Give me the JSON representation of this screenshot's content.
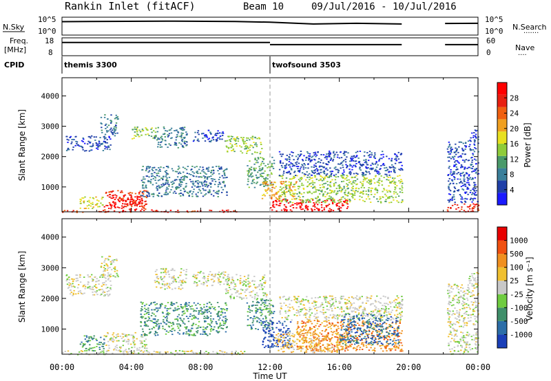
{
  "header": {
    "title": "Rankin Inlet (fitACF)",
    "beam": "Beam 10",
    "date_range": "09/Jul/2016 - 10/Jul/2016"
  },
  "colors": {
    "power_scale": [
      "#1a1aff",
      "#1f3fa8",
      "#3a7f9a",
      "#4a9a6a",
      "#8fcc3a",
      "#e8e020",
      "#f0a020",
      "#f06010",
      "#e82010",
      "#ff0000"
    ],
    "velocity_scale": [
      "#1a3fb8",
      "#2c6ea8",
      "#3f8f6a",
      "#6fcc40",
      "#c8c8c8",
      "#f0c030",
      "#f09020",
      "#f05010",
      "#e80000"
    ]
  },
  "chart_data": [
    {
      "type": "line",
      "name": "noise-panel",
      "labels": {
        "left": "N.Sky",
        "right": "N.Search",
        "right_marker": "·······"
      },
      "yticks_left": [
        "10^5",
        "10^0"
      ],
      "yticks_right": [
        "10^5",
        "10^0"
      ],
      "segments": [
        {
          "x": [
            0.0,
            6.0,
            10.0,
            12.0,
            14.5,
            17.0,
            19.6
          ],
          "y": [
            0.75,
            0.78,
            0.76,
            0.72,
            0.62,
            0.66,
            0.62
          ]
        },
        {
          "x": [
            22.1,
            24.0
          ],
          "y": [
            0.65,
            0.66
          ]
        }
      ],
      "ylim": [
        0,
        1
      ]
    },
    {
      "type": "line",
      "name": "freq-panel",
      "labels": {
        "left_top": "Freq.",
        "left_bottom": "[MHz]",
        "right": "Nave",
        "right_marker": "····"
      },
      "yticks_left": [
        "18",
        "8"
      ],
      "yticks_right": [
        "60",
        "0"
      ],
      "segments": [
        {
          "x": [
            0.0,
            12.0
          ],
          "y": [
            0.74,
            0.74
          ]
        },
        {
          "x": [
            12.0,
            19.6
          ],
          "y": [
            0.62,
            0.62
          ]
        },
        {
          "x": [
            22.1,
            24.0
          ],
          "y": [
            0.62,
            0.62
          ]
        }
      ],
      "ylim": [
        0,
        1
      ]
    },
    {
      "type": "table",
      "name": "cpid-panel",
      "label": "CPID",
      "entries": [
        {
          "start_hour": 0.0,
          "name": "themis 3300"
        },
        {
          "start_hour": 12.0,
          "name": "twofsound 3503"
        }
      ]
    },
    {
      "type": "heatmap",
      "name": "power",
      "ylabel": "Slant Range [km]",
      "colorbar_label": "Power [dB]",
      "colorbar_ticks": [
        "28",
        "24",
        "20",
        "16",
        "12",
        "8",
        "4"
      ],
      "xlim": [
        0,
        24
      ],
      "ylim": [
        180,
        4600
      ],
      "yticks": [
        1000,
        2000,
        3000,
        4000
      ],
      "blobs": [
        {
          "x0": 0.0,
          "x1": 10.5,
          "y0": 180,
          "y1": 260,
          "level": 8
        },
        {
          "x0": 2.4,
          "x1": 4.9,
          "y0": 260,
          "y1": 900,
          "level": 8
        },
        {
          "x0": 2.7,
          "x1": 4.6,
          "y0": 400,
          "y1": 750,
          "level": 9
        },
        {
          "x0": 1.0,
          "x1": 2.4,
          "y0": 300,
          "y1": 700,
          "level": 5
        },
        {
          "x0": 0.2,
          "x1": 2.8,
          "y0": 2200,
          "y1": 2700,
          "level": 1
        },
        {
          "x0": 2.2,
          "x1": 3.2,
          "y0": 2700,
          "y1": 3400,
          "level": 2
        },
        {
          "x0": 4.0,
          "x1": 5.4,
          "y0": 2600,
          "y1": 3000,
          "level": 4
        },
        {
          "x0": 5.3,
          "x1": 7.2,
          "y0": 2300,
          "y1": 3000,
          "level": 2
        },
        {
          "x0": 7.5,
          "x1": 9.4,
          "y0": 2500,
          "y1": 2900,
          "level": 1
        },
        {
          "x0": 9.4,
          "x1": 11.5,
          "y0": 2100,
          "y1": 2700,
          "level": 4
        },
        {
          "x0": 10.6,
          "x1": 12.2,
          "y0": 1000,
          "y1": 2000,
          "level": 3
        },
        {
          "x0": 11.5,
          "x1": 13.5,
          "y0": 600,
          "y1": 1200,
          "level": 6
        },
        {
          "x0": 12.0,
          "x1": 16.5,
          "y0": 200,
          "y1": 600,
          "level": 9
        },
        {
          "x0": 12.5,
          "x1": 19.6,
          "y0": 500,
          "y1": 1400,
          "level": 4
        },
        {
          "x0": 12.5,
          "x1": 19.6,
          "y0": 1400,
          "y1": 2200,
          "level": 1
        },
        {
          "x0": 4.5,
          "x1": 9.5,
          "y0": 700,
          "y1": 1700,
          "level": 2
        },
        {
          "x0": 22.2,
          "x1": 24.0,
          "y0": 200,
          "y1": 500,
          "level": 8
        },
        {
          "x0": 22.2,
          "x1": 24.0,
          "y0": 500,
          "y1": 2500,
          "level": 1
        },
        {
          "x0": 23.4,
          "x1": 24.0,
          "y0": 2500,
          "y1": 2900,
          "level": 1
        }
      ]
    },
    {
      "type": "heatmap",
      "name": "velocity",
      "ylabel": "Slant Range [km]",
      "colorbar_label": "Velocity [m s⁻¹]",
      "colorbar_ticks": [
        "1000",
        "500",
        "100",
        "25",
        "-25",
        "-100",
        "-500",
        "-1000"
      ],
      "xlim": [
        0,
        24
      ],
      "ylim": [
        180,
        4600
      ],
      "yticks": [
        1000,
        2000,
        3000,
        4000
      ],
      "xticks": [
        "00:00",
        "04:00",
        "08:00",
        "12:00",
        "16:00",
        "20:00",
        "00:00"
      ],
      "xlabel": "Time UT",
      "blobs": [
        {
          "x0": 0.0,
          "x1": 10.5,
          "y0": 180,
          "y1": 320,
          "level": 4
        },
        {
          "x0": 2.4,
          "x1": 4.9,
          "y0": 260,
          "y1": 900,
          "level": 4
        },
        {
          "x0": 1.0,
          "x1": 2.4,
          "y0": 300,
          "y1": 800,
          "level": 2
        },
        {
          "x0": 0.2,
          "x1": 2.8,
          "y0": 2100,
          "y1": 2800,
          "level": 4
        },
        {
          "x0": 2.2,
          "x1": 3.2,
          "y0": 2700,
          "y1": 3400,
          "level": 4
        },
        {
          "x0": 5.3,
          "x1": 7.2,
          "y0": 2300,
          "y1": 3000,
          "level": 4
        },
        {
          "x0": 7.5,
          "x1": 9.4,
          "y0": 2400,
          "y1": 2900,
          "level": 4
        },
        {
          "x0": 9.4,
          "x1": 11.8,
          "y0": 2000,
          "y1": 2800,
          "level": 4
        },
        {
          "x0": 4.5,
          "x1": 9.5,
          "y0": 800,
          "y1": 1900,
          "level": 2
        },
        {
          "x0": 10.6,
          "x1": 12.2,
          "y0": 1000,
          "y1": 2000,
          "level": 2
        },
        {
          "x0": 11.5,
          "x1": 13.2,
          "y0": 400,
          "y1": 1300,
          "level": 0
        },
        {
          "x0": 12.2,
          "x1": 16.5,
          "y0": 250,
          "y1": 900,
          "level": 5
        },
        {
          "x0": 13.5,
          "x1": 19.6,
          "y0": 300,
          "y1": 1300,
          "level": 6
        },
        {
          "x0": 12.5,
          "x1": 19.6,
          "y0": 1300,
          "y1": 2100,
          "level": 4
        },
        {
          "x0": 16.0,
          "x1": 19.4,
          "y0": 500,
          "y1": 1500,
          "level": 1
        },
        {
          "x0": 22.2,
          "x1": 24.0,
          "y0": 200,
          "y1": 2500,
          "level": 4
        },
        {
          "x0": 23.4,
          "x1": 24.0,
          "y0": 2500,
          "y1": 2900,
          "level": 4
        }
      ]
    }
  ]
}
